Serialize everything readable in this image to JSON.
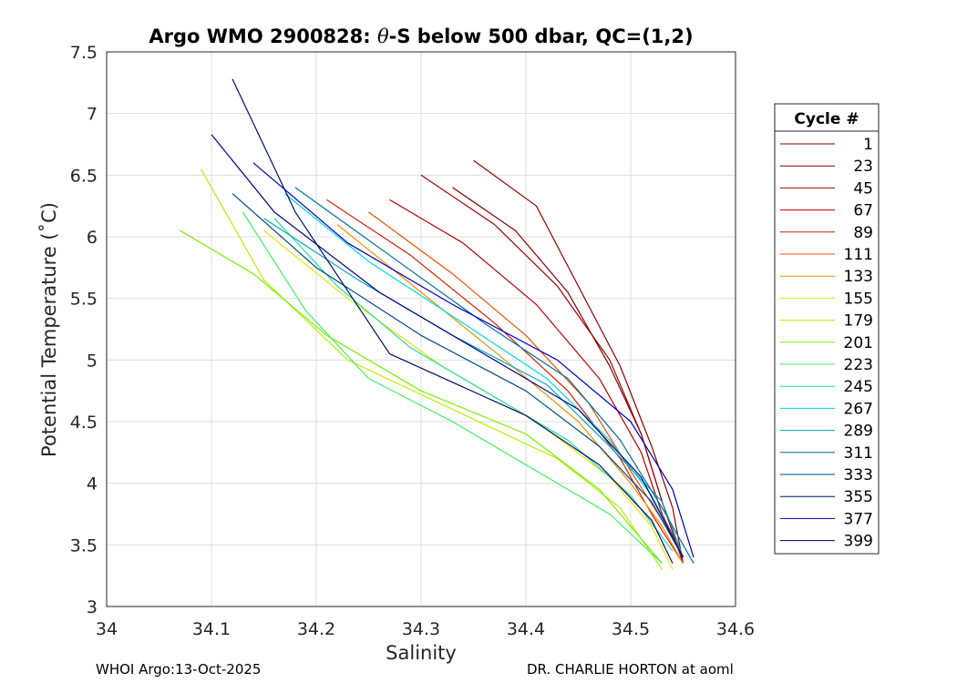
{
  "chart_data": {
    "type": "line",
    "title_prefix": "Argo WMO 2900828: ",
    "title_symbol": "θ",
    "title_suffix": "-S below 500 dbar,  QC=(1,2)",
    "xlabel": "Salinity",
    "ylabel": "Potential Temperature (˚C)",
    "xlim": [
      34.0,
      34.6
    ],
    "ylim": [
      3.0,
      7.5
    ],
    "xticks": [
      "34",
      "34.1",
      "34.2",
      "34.3",
      "34.4",
      "34.5",
      "34.6"
    ],
    "yticks": [
      "3",
      "3.5",
      "4",
      "4.5",
      "5",
      "5.5",
      "6",
      "6.5",
      "7",
      "7.5"
    ],
    "grid": true,
    "legend_title": "Cycle #",
    "legend_position": "outside-right",
    "legend": [
      {
        "label": "1",
        "color": "#800000"
      },
      {
        "label": "23",
        "color": "#8c0000"
      },
      {
        "label": "45",
        "color": "#a00000"
      },
      {
        "label": "67",
        "color": "#b80000"
      },
      {
        "label": "89",
        "color": "#d42000"
      },
      {
        "label": "111",
        "color": "#ec5000"
      },
      {
        "label": "133",
        "color": "#f09000"
      },
      {
        "label": "155",
        "color": "#f0e000"
      },
      {
        "label": "179",
        "color": "#b8f000"
      },
      {
        "label": "201",
        "color": "#78f000"
      },
      {
        "label": "223",
        "color": "#40f060"
      },
      {
        "label": "245",
        "color": "#20e0a0"
      },
      {
        "label": "267",
        "color": "#00d8e0"
      },
      {
        "label": "289",
        "color": "#00a8c0"
      },
      {
        "label": "311",
        "color": "#0070a0"
      },
      {
        "label": "333",
        "color": "#004880"
      },
      {
        "label": "355",
        "color": "#001060"
      },
      {
        "label": "377",
        "color": "#0000c0"
      },
      {
        "label": "399",
        "color": "#000080"
      }
    ],
    "series": [
      {
        "name": "1",
        "salinity": [
          34.33,
          34.39,
          34.44,
          34.48,
          34.51,
          34.53,
          34.55
        ],
        "theta": [
          6.4,
          6.05,
          5.55,
          4.95,
          4.4,
          3.85,
          3.4
        ]
      },
      {
        "name": "23",
        "salinity": [
          34.35,
          34.41,
          34.45,
          34.49,
          34.52,
          34.54,
          34.55
        ],
        "theta": [
          6.62,
          6.25,
          5.6,
          4.95,
          4.3,
          3.8,
          3.35
        ]
      },
      {
        "name": "45",
        "salinity": [
          34.3,
          34.37,
          34.43,
          34.48,
          34.51,
          34.53,
          34.55
        ],
        "theta": [
          6.5,
          6.1,
          5.6,
          5.0,
          4.4,
          3.85,
          3.35
        ]
      },
      {
        "name": "67",
        "salinity": [
          34.27,
          34.34,
          34.41,
          34.47,
          34.51,
          34.53,
          34.55
        ],
        "theta": [
          6.3,
          5.95,
          5.45,
          4.85,
          4.25,
          3.75,
          3.4
        ]
      },
      {
        "name": "89",
        "salinity": [
          34.21,
          34.29,
          34.37,
          34.44,
          34.49,
          34.52,
          34.55
        ],
        "theta": [
          6.3,
          5.85,
          5.3,
          4.75,
          4.2,
          3.75,
          3.35
        ]
      },
      {
        "name": "111",
        "salinity": [
          34.25,
          34.33,
          34.4,
          34.46,
          34.5,
          34.53,
          34.55
        ],
        "theta": [
          6.2,
          5.7,
          5.2,
          4.65,
          4.1,
          3.7,
          3.4
        ]
      },
      {
        "name": "133",
        "salinity": [
          34.22,
          34.3,
          34.38,
          34.45,
          34.5,
          34.53,
          34.55
        ],
        "theta": [
          6.1,
          5.55,
          5.0,
          4.5,
          4.0,
          3.65,
          3.35
        ]
      },
      {
        "name": "155",
        "salinity": [
          34.15,
          34.23,
          34.32,
          34.41,
          34.48,
          34.52,
          34.54
        ],
        "theta": [
          6.05,
          5.5,
          4.95,
          4.5,
          4.05,
          3.65,
          3.3
        ]
      },
      {
        "name": "179",
        "salinity": [
          34.09,
          34.15,
          34.23,
          34.33,
          34.43,
          34.49,
          34.53
        ],
        "theta": [
          6.55,
          5.65,
          5.0,
          4.6,
          4.2,
          3.8,
          3.3
        ]
      },
      {
        "name": "201",
        "salinity": [
          34.07,
          34.14,
          34.21,
          34.3,
          34.4,
          34.47,
          34.53
        ],
        "theta": [
          6.05,
          5.7,
          5.2,
          4.75,
          4.4,
          3.95,
          3.35
        ]
      },
      {
        "name": "223",
        "salinity": [
          34.13,
          34.19,
          34.25,
          34.33,
          34.42,
          34.48,
          34.53
        ],
        "theta": [
          6.2,
          5.4,
          4.85,
          4.5,
          4.05,
          3.75,
          3.35
        ]
      },
      {
        "name": "245",
        "salinity": [
          34.16,
          34.22,
          34.29,
          34.37,
          34.44,
          34.5,
          34.54
        ],
        "theta": [
          6.15,
          5.6,
          5.1,
          4.7,
          4.35,
          3.9,
          3.45
        ]
      },
      {
        "name": "267",
        "salinity": [
          34.17,
          34.25,
          34.34,
          34.42,
          34.48,
          34.52,
          34.55
        ],
        "theta": [
          6.35,
          5.8,
          5.3,
          4.85,
          4.35,
          3.9,
          3.4
        ]
      },
      {
        "name": "289",
        "salinity": [
          34.15,
          34.24,
          34.33,
          34.42,
          34.48,
          34.53,
          34.55
        ],
        "theta": [
          6.15,
          5.65,
          5.2,
          4.8,
          4.3,
          3.85,
          3.4
        ]
      },
      {
        "name": "311",
        "salinity": [
          34.18,
          34.27,
          34.36,
          34.44,
          34.49,
          34.53,
          34.56
        ],
        "theta": [
          6.4,
          5.85,
          5.3,
          4.85,
          4.35,
          3.8,
          3.35
        ]
      },
      {
        "name": "333",
        "salinity": [
          34.12,
          34.2,
          34.3,
          34.4,
          34.47,
          34.52,
          34.55
        ],
        "theta": [
          6.35,
          5.75,
          5.2,
          4.75,
          4.3,
          3.85,
          3.4
        ]
      },
      {
        "name": "355",
        "salinity": [
          34.12,
          34.18,
          34.27,
          34.4,
          34.47,
          34.52,
          34.54
        ],
        "theta": [
          7.28,
          6.2,
          5.05,
          4.55,
          4.15,
          3.7,
          3.35
        ]
      },
      {
        "name": "377",
        "salinity": [
          34.14,
          34.23,
          34.33,
          34.43,
          34.5,
          34.54,
          34.56
        ],
        "theta": [
          6.6,
          5.95,
          5.45,
          5.0,
          4.5,
          3.95,
          3.4
        ]
      },
      {
        "name": "399",
        "salinity": [
          34.1,
          34.16,
          34.26,
          34.36,
          34.45,
          34.51,
          34.55
        ],
        "theta": [
          6.83,
          6.2,
          5.55,
          5.05,
          4.6,
          4.05,
          3.4
        ]
      }
    ]
  },
  "footer": {
    "left": "WHOI Argo:13-Oct-2025",
    "right": "DR. CHARLIE HORTON at aoml"
  }
}
